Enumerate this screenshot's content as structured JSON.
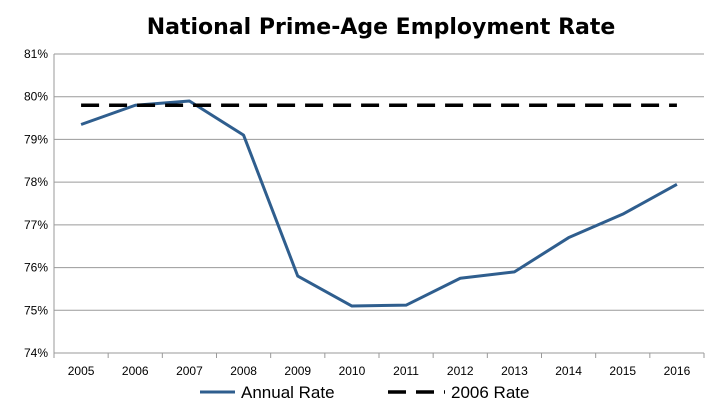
{
  "chart_data": {
    "type": "line",
    "title": "National Prime-Age Employment Rate",
    "xlabel": "",
    "ylabel": "",
    "x": [
      "2005",
      "2006",
      "2007",
      "2008",
      "2009",
      "2010",
      "2011",
      "2012",
      "2013",
      "2014",
      "2015",
      "2016"
    ],
    "ylim": [
      74,
      81
    ],
    "yticks": [
      "74%",
      "75%",
      "76%",
      "77%",
      "78%",
      "79%",
      "80%",
      "81%"
    ],
    "grid": true,
    "legend_position": "bottom",
    "series": [
      {
        "name": "Annual Rate",
        "style": "solid",
        "color": "#2f5e8e",
        "values": [
          79.35,
          79.8,
          79.9,
          79.1,
          75.8,
          75.1,
          75.12,
          75.75,
          75.9,
          76.7,
          77.25,
          77.95
        ]
      },
      {
        "name": "2006 Rate",
        "style": "dashed",
        "color": "#000000",
        "values": [
          79.8,
          79.8,
          79.8,
          79.8,
          79.8,
          79.8,
          79.8,
          79.8,
          79.8,
          79.8,
          79.8,
          79.8
        ]
      }
    ]
  }
}
